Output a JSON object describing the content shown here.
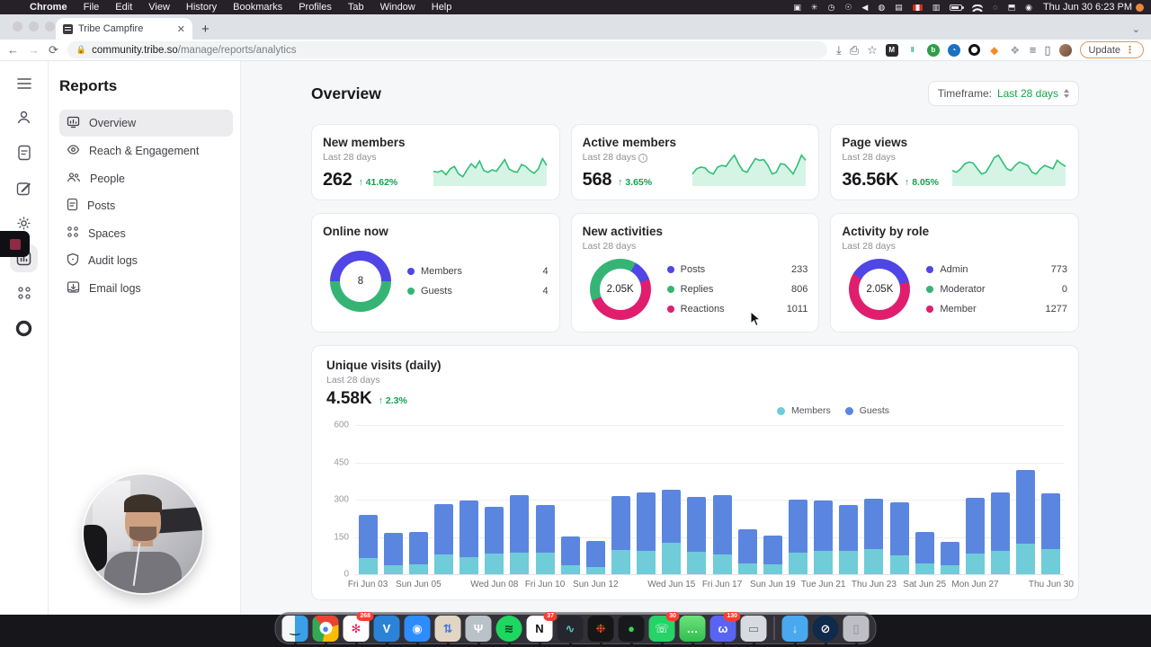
{
  "menubar": {
    "apple": "",
    "app_name": "Chrome",
    "items": [
      "File",
      "Edit",
      "View",
      "History",
      "Bookmarks",
      "Profiles",
      "Tab",
      "Window",
      "Help"
    ],
    "status_icons": [
      {
        "name": "camera-icon",
        "glyph": "▣"
      },
      {
        "name": "gear-status-icon",
        "glyph": "✳"
      },
      {
        "name": "screen-time-icon",
        "glyph": "◷"
      },
      {
        "name": "accessibility-icon",
        "glyph": "☉"
      },
      {
        "name": "volume-icon",
        "glyph": "◀"
      },
      {
        "name": "notification-icon",
        "glyph": "◍"
      },
      {
        "name": "keyboard-icon",
        "glyph": "▤"
      },
      {
        "name": "canada-flag-icon",
        "glyph": "FLAG"
      },
      {
        "name": "screen-share-icon",
        "glyph": "▥"
      },
      {
        "name": "battery-icon",
        "glyph": "BATT"
      },
      {
        "name": "wifi-icon",
        "glyph": "WIFI"
      },
      {
        "name": "spotlight-icon",
        "glyph": "◌"
      },
      {
        "name": "display-icon",
        "glyph": "⬒"
      },
      {
        "name": "siri-icon",
        "glyph": "◉"
      }
    ],
    "clock": "Thu Jun 30  6:23 PM"
  },
  "browser": {
    "tab_title": "Tribe Campfire",
    "close_tab": "✕",
    "new_tab": "+",
    "url_host": "community.tribe.so",
    "url_path": "/manage/reports/analytics",
    "update_label": "Update"
  },
  "sidebar": {
    "title": "Reports",
    "items": [
      {
        "label": "Overview",
        "icon": "presentation-chart-icon",
        "active": true
      },
      {
        "label": "Reach & Engagement",
        "icon": "eye-icon",
        "active": false
      },
      {
        "label": "People",
        "icon": "people-icon",
        "active": false
      },
      {
        "label": "Posts",
        "icon": "document-icon",
        "active": false
      },
      {
        "label": "Spaces",
        "icon": "grid-icon",
        "active": false
      },
      {
        "label": "Audit logs",
        "icon": "shield-icon",
        "active": false
      },
      {
        "label": "Email logs",
        "icon": "inbox-icon",
        "active": false
      }
    ]
  },
  "header": {
    "title": "Overview",
    "timeframe_label": "Timeframe:",
    "timeframe_value": "Last 28 days"
  },
  "stat_cards": [
    {
      "title": "New members",
      "subtitle": "Last 28 days",
      "value": "262",
      "delta": "↑ 41.62%"
    },
    {
      "title": "Active members",
      "subtitle": "Last 28 days",
      "value": "568",
      "delta": "↑ 3.65%",
      "info": true
    },
    {
      "title": "Page views",
      "subtitle": "Last 28 days",
      "value": "36.56K",
      "delta": "↑ 8.05%"
    }
  ],
  "donut_cards": [
    {
      "title": "Online now",
      "subtitle": ""
    },
    {
      "title": "New activities",
      "subtitle": "Last 28 days"
    },
    {
      "title": "Activity by role",
      "subtitle": "Last 28 days"
    }
  ],
  "big_card": {
    "title": "Unique visits (daily)",
    "subtitle": "Last 28 days",
    "value": "4.58K",
    "delta": "↑ 2.3%"
  },
  "colors": {
    "accent_green": "#12a150",
    "donut_blue": "#4f46e5",
    "donut_green": "#36b475",
    "donut_pink": "#e11d6e",
    "bar_members": "#6fccd8",
    "bar_guests": "#5b86e0",
    "spark_green": "#2fbf76"
  },
  "chart_data": [
    {
      "type": "line",
      "title": "New members sparkline",
      "values": [
        38,
        35,
        40,
        28,
        45,
        52,
        30,
        22,
        42,
        60,
        48,
        68,
        40,
        35,
        42,
        38,
        55,
        72,
        45,
        38,
        35,
        58,
        52,
        40,
        32,
        45,
        75,
        55
      ]
    },
    {
      "type": "line",
      "title": "Active members sparkline",
      "values": [
        30,
        45,
        50,
        48,
        35,
        30,
        50,
        55,
        52,
        70,
        85,
        60,
        40,
        35,
        55,
        75,
        70,
        72,
        55,
        30,
        35,
        60,
        58,
        45,
        30,
        55,
        85,
        70
      ]
    },
    {
      "type": "line",
      "title": "Page views sparkline",
      "values": [
        40,
        35,
        45,
        60,
        65,
        62,
        45,
        30,
        35,
        55,
        78,
        85,
        65,
        45,
        40,
        55,
        65,
        60,
        55,
        35,
        30,
        45,
        55,
        50,
        45,
        70,
        60,
        52
      ]
    },
    {
      "type": "pie",
      "title": "Online now",
      "center_label": "8",
      "start_angle": -90,
      "segments": [
        {
          "label": "Members",
          "value": 4,
          "color": "#4f46e5"
        },
        {
          "label": "Guests",
          "value": 4,
          "color": "#36b475"
        }
      ]
    },
    {
      "type": "pie",
      "title": "New activities",
      "center_label": "2.05K",
      "start_angle": 30,
      "segments": [
        {
          "label": "Posts",
          "value": 233,
          "color": "#4f46e5"
        },
        {
          "label": "Reactions",
          "value": 1011,
          "color": "#e11d6e"
        },
        {
          "label": "Replies",
          "value": 806,
          "color": "#36b475"
        }
      ],
      "legend_order": [
        "Posts",
        "Replies",
        "Reactions"
      ],
      "legend": [
        {
          "label": "Posts",
          "value": 233,
          "color": "#4f46e5"
        },
        {
          "label": "Replies",
          "value": 806,
          "color": "#36b475"
        },
        {
          "label": "Reactions",
          "value": 1011,
          "color": "#e11d6e"
        }
      ]
    },
    {
      "type": "pie",
      "title": "Activity by role",
      "center_label": "2.05K",
      "start_angle": -60,
      "segments": [
        {
          "label": "Admin",
          "value": 773,
          "color": "#4f46e5"
        },
        {
          "label": "Member",
          "value": 1277,
          "color": "#e11d6e"
        }
      ],
      "legend": [
        {
          "label": "Admin",
          "value": 773,
          "color": "#4f46e5"
        },
        {
          "label": "Moderator",
          "value": 0,
          "color": "#36b475"
        },
        {
          "label": "Member",
          "value": 1277,
          "color": "#e11d6e"
        }
      ]
    },
    {
      "type": "bar",
      "stacked": true,
      "title": "Unique visits (daily)",
      "x": [
        "Jun 03",
        "Jun 04",
        "Jun 05",
        "Jun 06",
        "Jun 07",
        "Jun 08",
        "Jun 09",
        "Jun 10",
        "Jun 11",
        "Jun 12",
        "Jun 13",
        "Jun 14",
        "Jun 15",
        "Jun 16",
        "Jun 17",
        "Jun 18",
        "Jun 19",
        "Jun 20",
        "Jun 21",
        "Jun 22",
        "Jun 23",
        "Jun 24",
        "Jun 25",
        "Jun 26",
        "Jun 27",
        "Jun 28",
        "Jun 29",
        "Jun 30"
      ],
      "series": [
        {
          "name": "Members",
          "color": "#6fccd8",
          "values": [
            65,
            38,
            40,
            80,
            70,
            82,
            85,
            87,
            37,
            30,
            97,
            95,
            128,
            90,
            80,
            45,
            40,
            88,
            95,
            95,
            100,
            75,
            42,
            35,
            82,
            93,
            122,
            100
          ]
        },
        {
          "name": "Guests",
          "color": "#5b86e0",
          "values": [
            175,
            130,
            130,
            203,
            225,
            188,
            233,
            193,
            115,
            105,
            218,
            235,
            212,
            220,
            238,
            135,
            115,
            212,
            200,
            185,
            205,
            215,
            128,
            95,
            225,
            237,
            298,
            225
          ]
        }
      ],
      "ylim": [
        0,
        600
      ],
      "yticks": [
        0,
        150,
        300,
        450,
        600
      ],
      "tick_labels": [
        "Fri Jun 03",
        "Sun Jun 05",
        "Wed Jun 08",
        "Fri Jun 10",
        "Sun Jun 12",
        "Wed Jun 15",
        "Fri Jun 17",
        "Sun Jun 19",
        "Tue Jun 21",
        "Thu Jun 23",
        "Sat Jun 25",
        "Mon Jun 27",
        "Thu Jun 30"
      ],
      "tick_positions": [
        0,
        2,
        5,
        7,
        9,
        12,
        14,
        16,
        18,
        20,
        22,
        24,
        27
      ],
      "legend_position": "top-right",
      "grid": true
    }
  ],
  "dock": [
    {
      "name": "finder",
      "bg": "linear-gradient(90deg,#f5f6f8 50%,#3aa0e8 50%)",
      "glyph": "‿",
      "color": "#1b2a3a"
    },
    {
      "name": "chrome",
      "bg": "conic-gradient(from -45deg,#ea4335 0 33%,#fbbc05 0 66%,#34a853 0 100%)",
      "glyph": "●",
      "color": "#4285f4",
      "glyphBg": "#fff"
    },
    {
      "name": "slack",
      "bg": "#ffffff",
      "glyph": "✻",
      "color": "#e01e5a",
      "badge": "268"
    },
    {
      "name": "vscode",
      "bg": "#2b83d8",
      "glyph": "V",
      "color": "#ffffff"
    },
    {
      "name": "zoom",
      "bg": "#2d8cff",
      "glyph": "◉",
      "color": "#ffffff"
    },
    {
      "name": "arrows-app",
      "bg": "#e3d5c3",
      "glyph": "⇅",
      "color": "#3a7bd5"
    },
    {
      "name": "fork",
      "bg": "#b9c2c9",
      "glyph": "Ψ",
      "color": "#ffffff"
    },
    {
      "name": "spotify",
      "bg": "#1ed760",
      "glyph": "≋",
      "color": "#0a3a1c",
      "round": true
    },
    {
      "name": "notion",
      "bg": "#ffffff",
      "glyph": "N",
      "color": "#111111",
      "badge": "37"
    },
    {
      "name": "stats-app",
      "bg": "#26262e",
      "glyph": "∿",
      "color": "#53d0c9"
    },
    {
      "name": "figma",
      "bg": "#161616",
      "glyph": "❉",
      "color": "#f24e1e"
    },
    {
      "name": "terminal",
      "bg": "#17191d",
      "glyph": "●",
      "color": "#39d353"
    },
    {
      "name": "whatsapp",
      "bg": "#25d366",
      "glyph": "☏",
      "color": "#ffffff",
      "badge": "30"
    },
    {
      "name": "messages",
      "bg": "linear-gradient(180deg,#6fe07c,#2fbf4f)",
      "glyph": "…",
      "color": "#ffffff"
    },
    {
      "name": "discord",
      "bg": "#5865f2",
      "glyph": "ω",
      "color": "#ffffff",
      "badge": "130"
    },
    {
      "name": "screenshot-app",
      "bg": "#d7dbe0",
      "glyph": "▭",
      "color": "#6b7280"
    },
    {
      "name": "divider"
    },
    {
      "name": "downloads-folder",
      "bg": "#4aa8ef",
      "glyph": "↓",
      "color": "#dff0ff"
    },
    {
      "name": "onepassword",
      "bg": "#0f2a4a",
      "glyph": "⊘",
      "color": "#ffffff",
      "round": true
    },
    {
      "name": "trash",
      "bg": "rgba(215,215,222,.85)",
      "glyph": "▯",
      "color": "#8a8a92"
    }
  ]
}
